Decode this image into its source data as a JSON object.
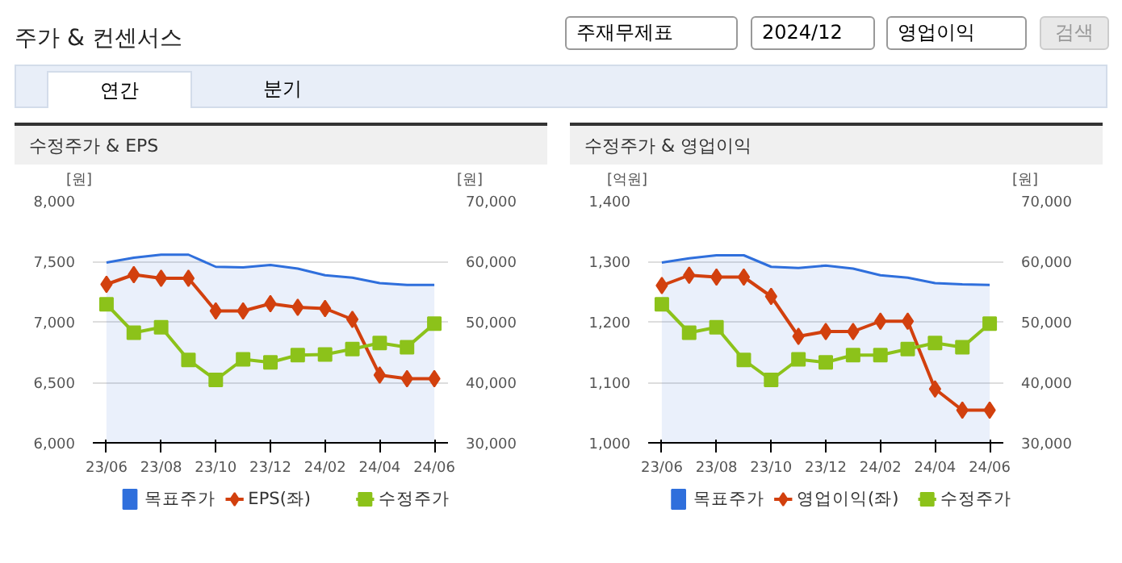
{
  "chart_data": [
    {
      "type": "line",
      "title": "수정주가 & EPS",
      "ylabel": "[원]",
      "y2label": "[원]",
      "annotations": [
        "주가 & 컨센서스",
        "주재무제표",
        "2024/12",
        "영업이익",
        "검색",
        "연간",
        "분기"
      ],
      "categories": [
        "23/06",
        null,
        "23/08",
        null,
        "23/10",
        null,
        "23/12",
        null,
        "24/02",
        null,
        "24/04",
        null,
        "24/06"
      ],
      "ylim": [
        6000,
        8000
      ],
      "yticks": [
        {
          "value": 6000,
          "label": "6,000"
        },
        {
          "value": 6500,
          "label": "6,500"
        },
        {
          "value": 7000,
          "label": "7,000"
        },
        {
          "value": 7500,
          "label": "7,500"
        },
        {
          "value": 8000,
          "label": "8,000"
        }
      ],
      "y2lim": [
        30000,
        70000
      ],
      "y2ticks": [
        {
          "value": 30000,
          "label": "30,000"
        },
        {
          "value": 40000,
          "label": "40,000"
        },
        {
          "value": 50000,
          "label": "50,000"
        },
        {
          "value": 60000,
          "label": "60,000"
        },
        {
          "value": 70000,
          "label": "70,000"
        }
      ],
      "grid": "y",
      "legend": "bottom",
      "series": [
        {
          "name": "목표주가",
          "type": "area",
          "axis": "y2",
          "marker": "none",
          "color": "#2f6fdc",
          "values": [
            59800,
            60600,
            61100,
            61100,
            59100,
            59000,
            59400,
            58800,
            57700,
            57300,
            56400,
            56100,
            56100
          ]
        },
        {
          "name": "EPS(좌)",
          "marker": "diamond",
          "color": "#d2400e",
          "values": [
            7310,
            7390,
            7360,
            7360,
            7090,
            7090,
            7150,
            7120,
            7110,
            7020,
            6560,
            6530,
            6530
          ]
        },
        {
          "name": "수정주가",
          "axis": "y2",
          "marker": "square",
          "color": "#8cc21a",
          "values": [
            52900,
            48200,
            49100,
            43700,
            40400,
            43800,
            43300,
            44500,
            44600,
            45500,
            46500,
            45800,
            49700
          ]
        }
      ]
    },
    {
      "type": "line",
      "title": "수정주가 & 영업이익",
      "ylabel": "[억원]",
      "y2label": "[원]",
      "categories": [
        "23/06",
        null,
        "23/08",
        null,
        "23/10",
        null,
        "23/12",
        null,
        "24/02",
        null,
        "24/04",
        null,
        "24/06"
      ],
      "ylim": [
        1000,
        1400
      ],
      "yticks": [
        {
          "value": 1000,
          "label": "1,000"
        },
        {
          "value": 1100,
          "label": "1,100"
        },
        {
          "value": 1200,
          "label": "1,200"
        },
        {
          "value": 1300,
          "label": "1,300"
        },
        {
          "value": 1400,
          "label": "1,400"
        }
      ],
      "y2lim": [
        30000,
        70000
      ],
      "y2ticks": [
        {
          "value": 30000,
          "label": "30,000"
        },
        {
          "value": 40000,
          "label": "40,000"
        },
        {
          "value": 50000,
          "label": "50,000"
        },
        {
          "value": 60000,
          "label": "60,000"
        },
        {
          "value": 70000,
          "label": "70,000"
        }
      ],
      "grid": "y",
      "legend": "bottom",
      "series": [
        {
          "name": "목표주가",
          "type": "area",
          "axis": "y2",
          "marker": "none",
          "color": "#2f6fdc",
          "values": [
            59800,
            60500,
            61000,
            61000,
            59100,
            58900,
            59300,
            58800,
            57700,
            57300,
            56400,
            56200,
            56100
          ]
        },
        {
          "name": "영업이익(좌)",
          "marker": "diamond",
          "color": "#d2400e",
          "values": [
            1260,
            1277,
            1274,
            1274,
            1242,
            1176,
            1184,
            1184,
            1201,
            1201,
            1089,
            1054,
            1054
          ]
        },
        {
          "name": "수정주가",
          "axis": "y2",
          "marker": "square",
          "color": "#8cc21a",
          "values": [
            52900,
            48200,
            49100,
            43700,
            40400,
            43800,
            43300,
            44500,
            44500,
            45500,
            46500,
            45800,
            49700
          ]
        }
      ]
    }
  ]
}
